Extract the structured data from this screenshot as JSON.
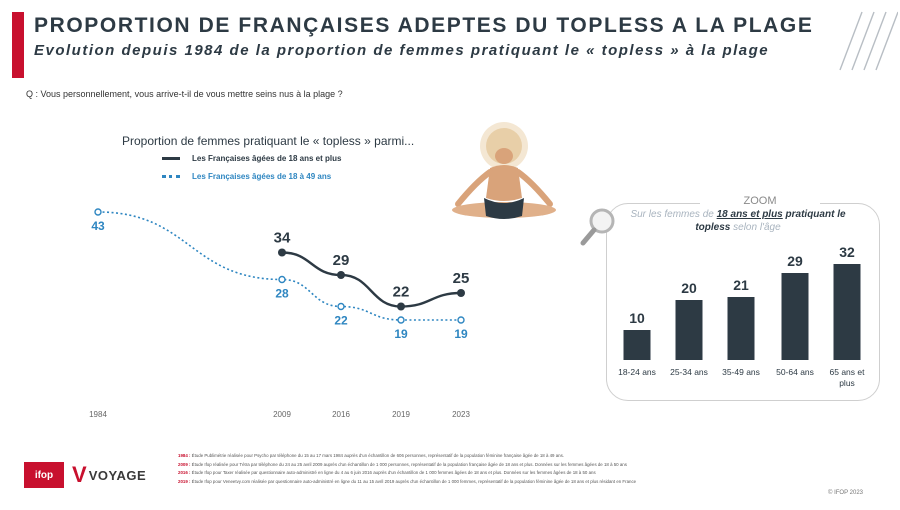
{
  "header": {
    "title": "PROPORTION DE FRANÇAISES ADEPTES DU TOPLESS A LA PLAGE",
    "subtitle": "Evolution depuis 1984 de la proportion de femmes pratiquant le « topless » à la plage",
    "accent_color": "#c8102e"
  },
  "question": "Q : Vous personnellement, vous arrive-t-il de vous mettre seins nus à la plage ?",
  "chart_data": [
    {
      "type": "line",
      "title": "Proportion de femmes pratiquant le « topless » parmi...",
      "x": [
        "1984",
        "2009",
        "2016",
        "2019",
        "2023"
      ],
      "series": [
        {
          "name": "Les Françaises âgées de 18 ans et plus",
          "values": [
            null,
            34,
            29,
            22,
            25
          ],
          "color": "#2d3a44"
        },
        {
          "name": "Les Françaises âgées de 18 à 49 ans",
          "values": [
            43,
            28,
            22,
            19,
            19
          ],
          "color": "#2e86c1"
        }
      ]
    },
    {
      "type": "bar",
      "title": "ZOOM",
      "subtitle": "Sur les femmes de 18 ans et plus pratiquant le topless selon l'âge",
      "categories": [
        "18-24 ans",
        "25-34 ans",
        "35-49 ans",
        "50-64 ans",
        "65 ans et plus"
      ],
      "values": [
        10,
        20,
        21,
        29,
        32
      ],
      "color": "#2d3a44"
    }
  ],
  "zoom": {
    "title": "ZOOM",
    "sub_a": "Sur les femmes de ",
    "sub_b": "18 ans et plus",
    "sub_c": " pratiquant le topless",
    "sub_d": " selon l'âge"
  },
  "footnotes": [
    {
      "key": "1984 :",
      "text": "Étude Publimétrie réalisée pour Psycho par téléphone du 15 au 17 mars 1984 auprès d'un échantillon de 606 personnes, représentatif de la population féminine française âgée de 18 à 49 ans."
    },
    {
      "key": "2009 :",
      "text": "Étude Ifop réalisée pour Tétra par téléphone du 24 au 25 avril 2009 auprès d'un échantillon de 1 000 personnes, représentatif de la population française âgée de 18 ans et plus. Données sur les femmes âgées de 18 à 50 ans"
    },
    {
      "key": "2016 :",
      "text": "Étude Ifop pour Taxer réalisée par questionnaire auto-administré en ligne du 4 au 6 juin 2016 auprès d'un échantillon de 1 000 femmes âgées de 18 ans et plus. Données sur les femmes âgées de 18 à 50 ans"
    },
    {
      "key": "2019 :",
      "text": "Étude Ifop pour Veneetvy.com réalisée par questionnaire auto-administré en ligne du 11 au 15 avril 2019 auprès d'un échantillon de 1 000 femmes, représentatif de la population féminine âgée de 18 ans et plus résidant en France"
    }
  ],
  "logos": {
    "ifop": "ifop",
    "voyage_mark": "V",
    "voyage_text": "VOYAGE"
  },
  "copyright": "© IFOP 2023"
}
